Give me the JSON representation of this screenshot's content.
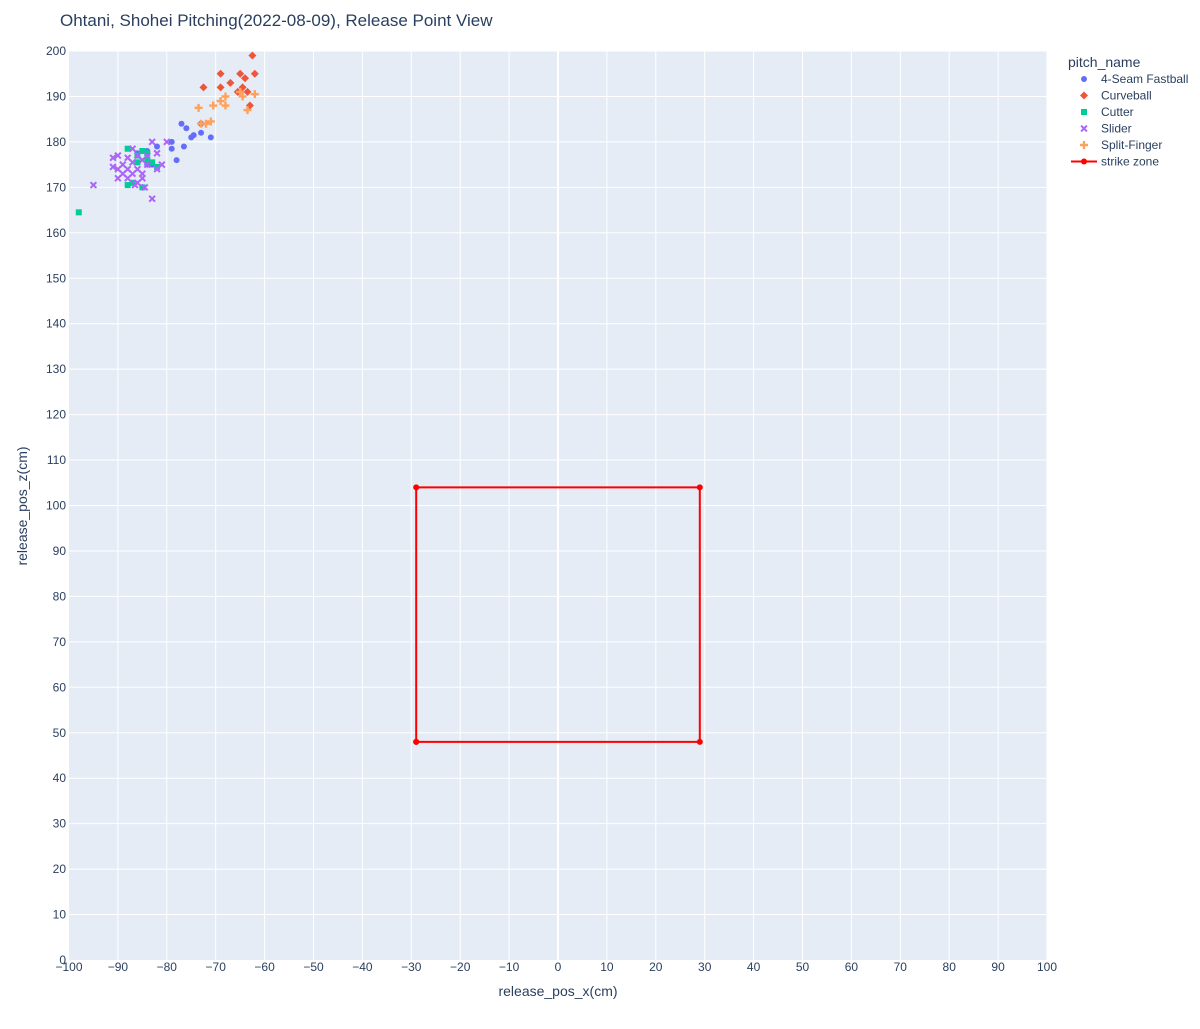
{
  "chart_data": {
    "type": "scatter",
    "title": "Ohtani, Shohei Pitching(2022-08-09), Release Point View",
    "xlabel": "release_pos_x(cm)",
    "ylabel": "release_pos_z(cm)",
    "xlim": [
      -100,
      100
    ],
    "ylim": [
      0,
      200
    ],
    "x_tick_step": 10,
    "y_tick_step": 10,
    "grid": true,
    "plot_background": "#e5ecf6",
    "legend_title": "pitch_name",
    "legend_position": "top-right-outside",
    "series": [
      {
        "name": "4-Seam Fastball",
        "symbol": "circle",
        "color": "#636efa",
        "points": [
          [
            -77,
            184
          ],
          [
            -76,
            183
          ],
          [
            -75,
            181
          ],
          [
            -74.5,
            181.5
          ],
          [
            -73,
            182
          ],
          [
            -73,
            184
          ],
          [
            -71,
            181
          ],
          [
            -79,
            180
          ],
          [
            -79,
            178.5
          ],
          [
            -78,
            176
          ],
          [
            -76.5,
            179
          ],
          [
            -82,
            179
          ],
          [
            -84,
            178
          ],
          [
            -86,
            177.5
          ],
          [
            -84,
            175
          ],
          [
            -83,
            175
          ]
        ]
      },
      {
        "name": "Curveball",
        "symbol": "diamond",
        "color": "#ef553b",
        "points": [
          [
            -62.5,
            199
          ],
          [
            -69,
            195
          ],
          [
            -65,
            195
          ],
          [
            -64,
            194
          ],
          [
            -62,
            195
          ],
          [
            -67,
            193
          ],
          [
            -72.5,
            192
          ],
          [
            -69,
            192
          ],
          [
            -64.5,
            192
          ],
          [
            -63.5,
            191
          ],
          [
            -65.5,
            191
          ],
          [
            -63,
            188
          ]
        ]
      },
      {
        "name": "Cutter",
        "symbol": "square",
        "color": "#00cc96",
        "points": [
          [
            -98,
            164.5
          ],
          [
            -88,
            178.5
          ],
          [
            -85,
            178
          ],
          [
            -84,
            177.5
          ],
          [
            -86,
            177
          ],
          [
            -88,
            170.5
          ],
          [
            -85,
            170
          ],
          [
            -84,
            176
          ],
          [
            -83,
            175.5
          ],
          [
            -82,
            174.5
          ],
          [
            -87,
            171
          ],
          [
            -86,
            175.5
          ]
        ]
      },
      {
        "name": "Slider",
        "symbol": "x",
        "color": "#ab63fa",
        "points": [
          [
            -95,
            170.5
          ],
          [
            -91,
            174.5
          ],
          [
            -91,
            176.5
          ],
          [
            -90,
            177
          ],
          [
            -90,
            172
          ],
          [
            -89,
            175
          ],
          [
            -88,
            174
          ],
          [
            -88,
            176.5
          ],
          [
            -88,
            172
          ],
          [
            -87,
            178.5
          ],
          [
            -87,
            175.5
          ],
          [
            -87,
            173
          ],
          [
            -86.5,
            170.5
          ],
          [
            -86,
            177
          ],
          [
            -86,
            174
          ],
          [
            -86,
            171
          ],
          [
            -85,
            176
          ],
          [
            -85,
            173
          ],
          [
            -85,
            172
          ],
          [
            -84.5,
            170
          ],
          [
            -84,
            177
          ],
          [
            -84,
            175
          ],
          [
            -83,
            180
          ],
          [
            -83,
            167.5
          ],
          [
            -82,
            177.5
          ],
          [
            -82,
            174
          ],
          [
            -81,
            175
          ],
          [
            -80,
            180
          ],
          [
            -89,
            173
          ],
          [
            -90,
            174
          ]
        ]
      },
      {
        "name": "Split-Finger",
        "symbol": "cross",
        "color": "#ffa15a",
        "points": [
          [
            -73.5,
            187.5
          ],
          [
            -73,
            184
          ],
          [
            -72,
            184
          ],
          [
            -71,
            184.5
          ],
          [
            -70.5,
            188
          ],
          [
            -69,
            189
          ],
          [
            -68,
            190
          ],
          [
            -68,
            188
          ],
          [
            -65,
            191
          ],
          [
            -64.5,
            190
          ],
          [
            -62,
            190.5
          ],
          [
            -63.5,
            187
          ]
        ]
      },
      {
        "name": "strike zone",
        "symbol": "line-marker",
        "color": "#ff0000",
        "points": [
          [
            -29,
            48
          ],
          [
            29,
            48
          ],
          [
            29,
            104
          ],
          [
            -29,
            104
          ],
          [
            -29,
            48
          ]
        ]
      }
    ]
  }
}
